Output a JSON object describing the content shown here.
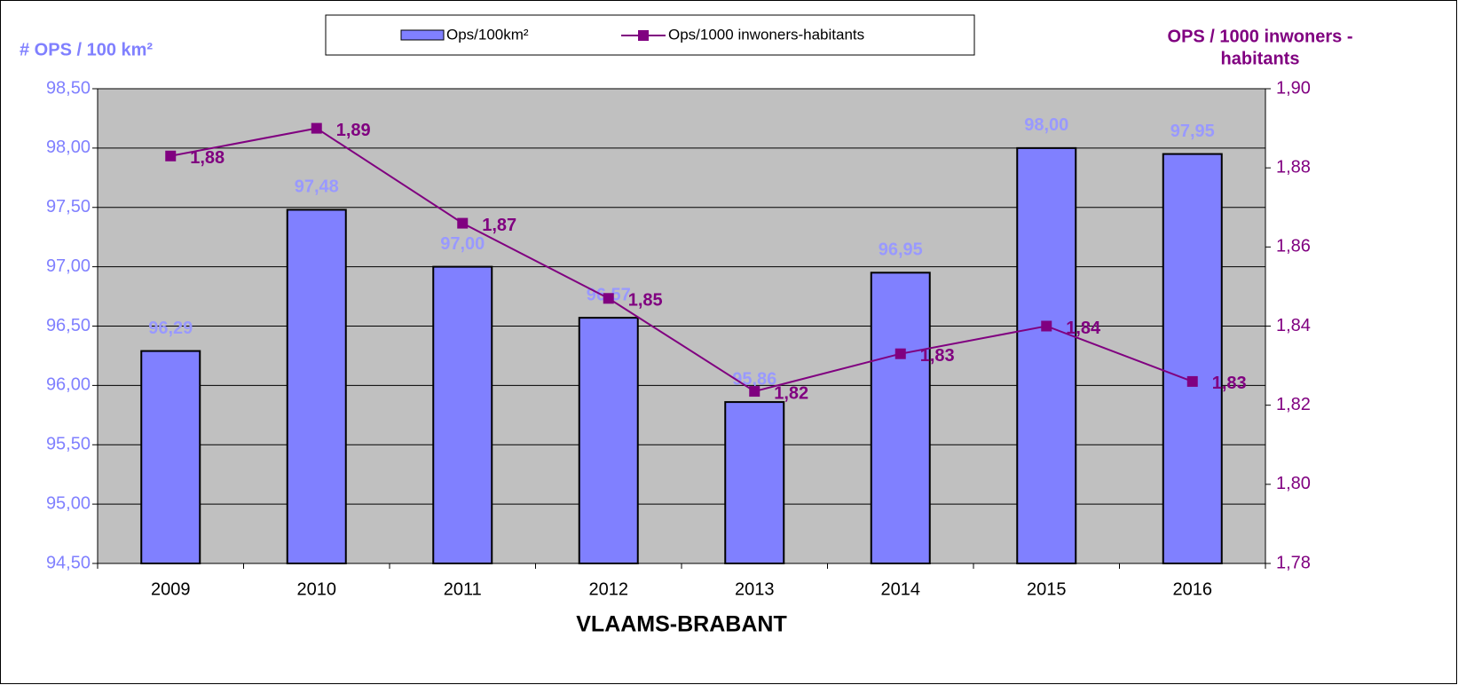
{
  "chart_data": {
    "type": "bar_line",
    "legend": "top",
    "grid": true,
    "x_label": "VLAAMS-BRABANT",
    "y_label": "# OPS / 100 km²",
    "y2_label": [
      "OPS / 1000 inwoners -",
      "habitants"
    ],
    "categories": [
      "2009",
      "2010",
      "2011",
      "2012",
      "2013",
      "2014",
      "2015",
      "2016"
    ],
    "series": [
      {
        "name": "Ops/100km²",
        "type": "bar",
        "color": "#8080ff",
        "values": [
          96.29,
          97.48,
          97.0,
          96.57,
          95.86,
          96.95,
          98.0,
          97.95
        ],
        "value_labels": [
          "96,29",
          "97,48",
          "97,00",
          "96,57",
          "95,86",
          "96,95",
          "98,00",
          "97,95"
        ]
      },
      {
        "name": "Ops/1000 inwoners-habitants",
        "type": "line",
        "axis": "y2",
        "color": "#800080",
        "values": [
          1.883,
          1.89,
          1.866,
          1.847,
          1.8235,
          1.833,
          1.84,
          1.826
        ],
        "value_labels": [
          "1,88",
          "1,89",
          "1,87",
          "1,85",
          "1,82",
          "1,83",
          "1,84",
          "1,83"
        ]
      }
    ],
    "ylim": [
      94.5,
      98.5
    ],
    "yticks": [
      {
        "value": 94.5,
        "label": "94,50"
      },
      {
        "value": 95,
        "label": "95,00"
      },
      {
        "value": 95.5,
        "label": "95,50"
      },
      {
        "value": 96,
        "label": "96,00"
      },
      {
        "value": 96.5,
        "label": "96,50"
      },
      {
        "value": 97,
        "label": "97,00"
      },
      {
        "value": 97.5,
        "label": "97,50"
      },
      {
        "value": 98,
        "label": "98,00"
      },
      {
        "value": 98.5,
        "label": "98,50"
      }
    ],
    "y2lim": [
      1.78,
      1.9
    ],
    "y2ticks": [
      {
        "value": 1.78,
        "label": "1,78"
      },
      {
        "value": 1.8,
        "label": "1,80"
      },
      {
        "value": 1.82,
        "label": "1,82"
      },
      {
        "value": 1.84,
        "label": "1,84"
      },
      {
        "value": 1.86,
        "label": "1,86"
      },
      {
        "value": 1.88,
        "label": "1,88"
      },
      {
        "value": 1.9,
        "label": "1,90"
      }
    ]
  }
}
